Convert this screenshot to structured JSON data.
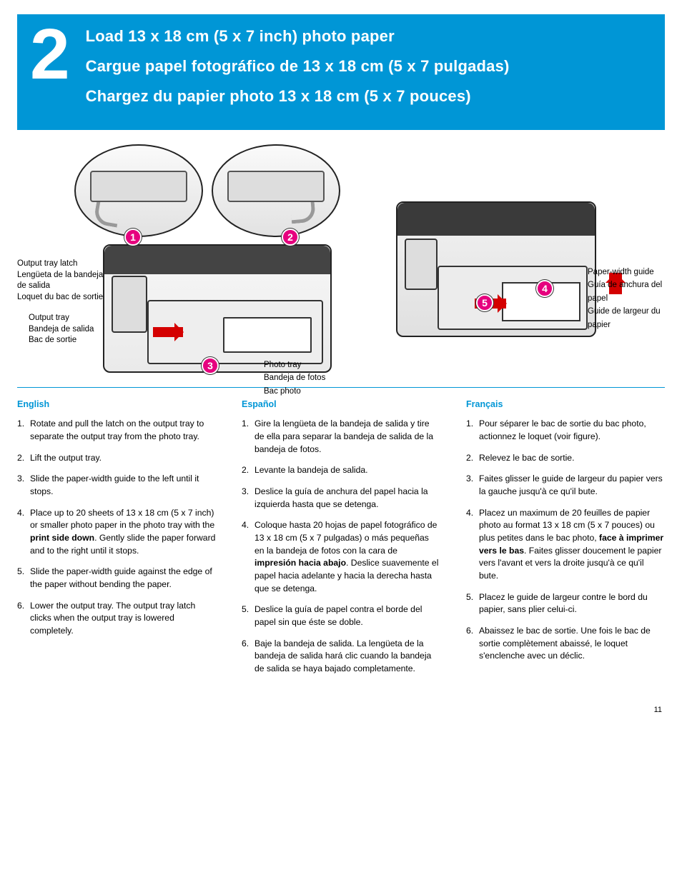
{
  "step_number": "2",
  "titles": {
    "en": "Load 13 x 18 cm (5 x 7 inch) photo paper",
    "es": "Cargue papel fotográfico de 13 x 18 cm (5 x 7 pulgadas)",
    "fr": "Chargez du papier photo 13 x 18 cm (5 x 7 pouces)"
  },
  "callouts": {
    "c1": "1",
    "c2": "2",
    "c3": "3",
    "c4": "4",
    "c5": "5"
  },
  "labels_left_latch": {
    "en": "Output tray latch",
    "es": "Lengüeta de la bandeja de salida",
    "fr": "Loquet du bac de sortie"
  },
  "labels_left_tray": {
    "en": "Output tray",
    "es": "Bandeja de salida",
    "fr": "Bac de sortie"
  },
  "labels_photo_tray": {
    "en": "Photo tray",
    "es": "Bandeja de fotos",
    "fr": "Bac photo"
  },
  "labels_width_guide": {
    "en": "Paper-width guide",
    "es": "Guía de anchura del papel",
    "fr": "Guide de largeur du papier"
  },
  "headings": {
    "en": "English",
    "es": "Español",
    "fr": "Français"
  },
  "english": {
    "s1": "Rotate and pull the latch on the output tray to separate the output tray from the photo tray.",
    "s2": "Lift the output tray.",
    "s3": "Slide the paper-width guide to the left until it stops.",
    "s4a": "Place up to 20 sheets of 13 x 18 cm (5 x 7 inch) or smaller photo paper in the photo tray with the ",
    "s4b": "print side down",
    "s4c": ". Gently slide the paper forward and to the right until it stops.",
    "s5": "Slide the paper-width guide against the edge of the paper without bending the paper.",
    "s6": "Lower the output tray. The output tray latch clicks when the output tray is lowered completely."
  },
  "espanol": {
    "s1": "Gire la lengüeta de la bandeja de salida y tire de ella para separar la bandeja de salida de la bandeja de fotos.",
    "s2": "Levante la bandeja de salida.",
    "s3": "Deslice la guía de anchura del papel hacia la izquierda hasta que se detenga.",
    "s4a": "Coloque hasta 20 hojas de papel fotográfico de 13 x 18 cm (5 x 7 pulgadas) o más pequeñas en la bandeja de fotos con la cara de ",
    "s4b": "impresión hacia abajo",
    "s4c": ". Deslice suavemente el papel hacia adelante y hacia la derecha hasta que se detenga.",
    "s5": "Deslice la guía de papel contra el borde del papel sin que éste se doble.",
    "s6": "Baje la bandeja de salida. La lengüeta de la bandeja de salida hará clic cuando la bandeja de salida se haya bajado completamente."
  },
  "francais": {
    "s1": "Pour séparer le bac de sortie du bac photo, actionnez le loquet (voir figure).",
    "s2": "Relevez le bac de sortie.",
    "s3": "Faites glisser le guide de largeur du papier vers la gauche jusqu'à ce qu'il bute.",
    "s4a": "Placez un maximum de 20 feuilles de papier photo au format 13 x 18 cm (5 x 7 pouces) ou plus petites dans le bac photo, ",
    "s4b": "face à imprimer vers le bas",
    "s4c": ". Faites glisser doucement le papier vers l'avant et vers la droite jusqu'à ce qu'il bute.",
    "s5": "Placez le guide de largeur contre le bord du papier, sans plier celui-ci.",
    "s6": "Abaissez le bac de sortie. Une fois le bac de sortie complètement abaissé, le loquet s'enclenche avec un déclic."
  },
  "page_number": "11",
  "colors": {
    "brand_blue": "#0096d6",
    "badge_magenta": "#e6007e",
    "arrow_red": "#d40000"
  }
}
